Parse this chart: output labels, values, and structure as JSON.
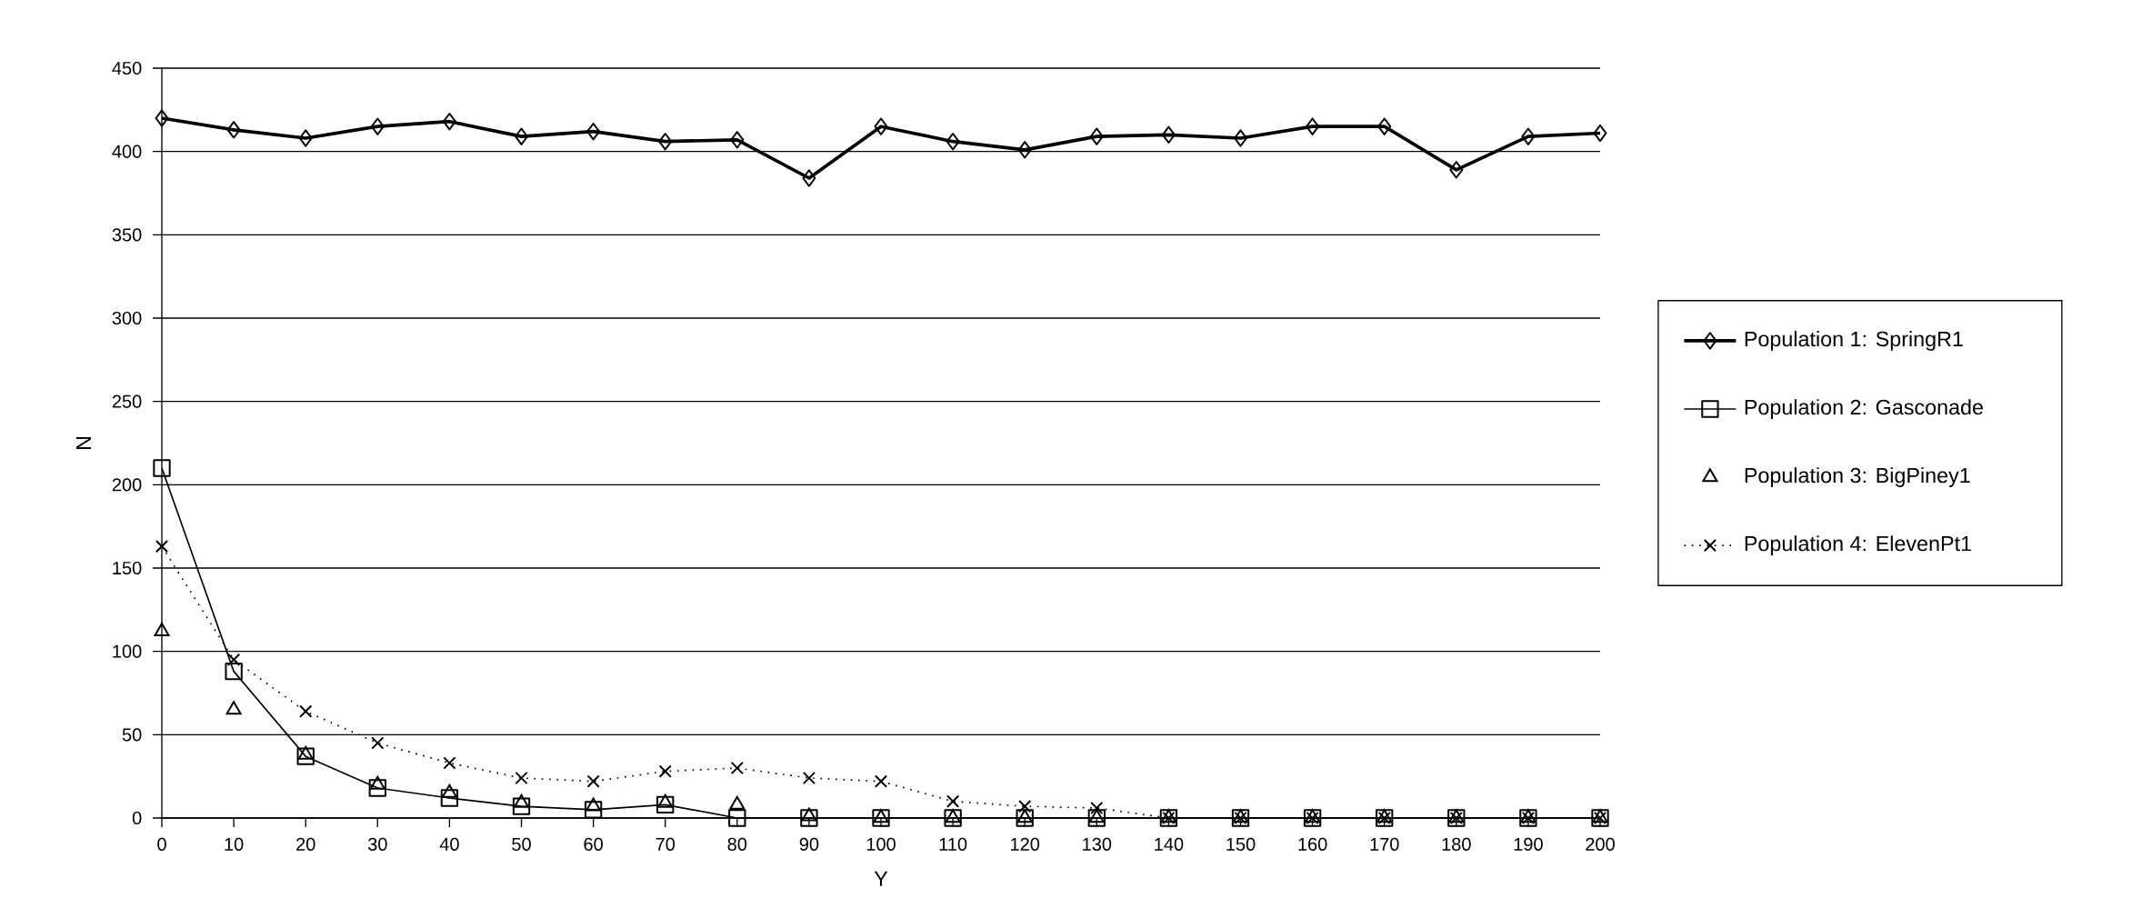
{
  "chart_data": {
    "type": "line",
    "xlabel": "Y",
    "ylabel": "N",
    "x": [
      0,
      10,
      20,
      30,
      40,
      50,
      60,
      70,
      80,
      90,
      100,
      110,
      120,
      130,
      140,
      150,
      160,
      170,
      180,
      190,
      200
    ],
    "xlim": [
      0,
      200
    ],
    "xticks": [
      0,
      10,
      20,
      30,
      40,
      50,
      60,
      70,
      80,
      90,
      100,
      110,
      120,
      130,
      140,
      150,
      160,
      170,
      180,
      190,
      200
    ],
    "ylim": [
      0,
      450
    ],
    "yticks": [
      0,
      50,
      100,
      150,
      200,
      250,
      300,
      350,
      400,
      450
    ],
    "grid": "y",
    "legend": "right",
    "series": [
      {
        "name": "Population 1: SpringR1",
        "color": "#000000",
        "marker": "diamond",
        "line_style": "solid",
        "values": [
          420,
          413,
          408,
          415,
          418,
          409,
          412,
          406,
          407,
          384,
          415,
          406,
          401,
          409,
          410,
          408,
          415,
          415,
          389,
          409,
          411
        ]
      },
      {
        "name": "Population 2: Gasconade",
        "color": "#000000",
        "marker": "square",
        "line_style": "solid",
        "values": [
          210,
          88,
          37,
          18,
          12,
          7,
          5,
          8,
          0,
          0,
          0,
          0,
          0,
          0,
          0,
          0,
          0,
          0,
          0,
          0,
          0
        ]
      },
      {
        "name": "Population 3: BigPiney1",
        "type": "scatter",
        "color": "#000000",
        "marker": "triangle",
        "values": [
          112,
          65,
          38,
          20,
          15,
          9,
          7,
          9,
          8,
          1,
          0,
          0,
          0,
          0,
          0,
          0,
          0,
          0,
          0,
          0,
          0
        ]
      },
      {
        "name": "Population 4: ElevenPt1",
        "color": "#000000",
        "marker": "cross",
        "line_style": "dotted",
        "values": [
          163,
          95,
          64,
          45,
          33,
          24,
          22,
          28,
          30,
          24,
          22,
          10,
          7,
          6,
          0,
          0,
          0,
          0,
          0,
          0,
          0
        ]
      }
    ]
  }
}
